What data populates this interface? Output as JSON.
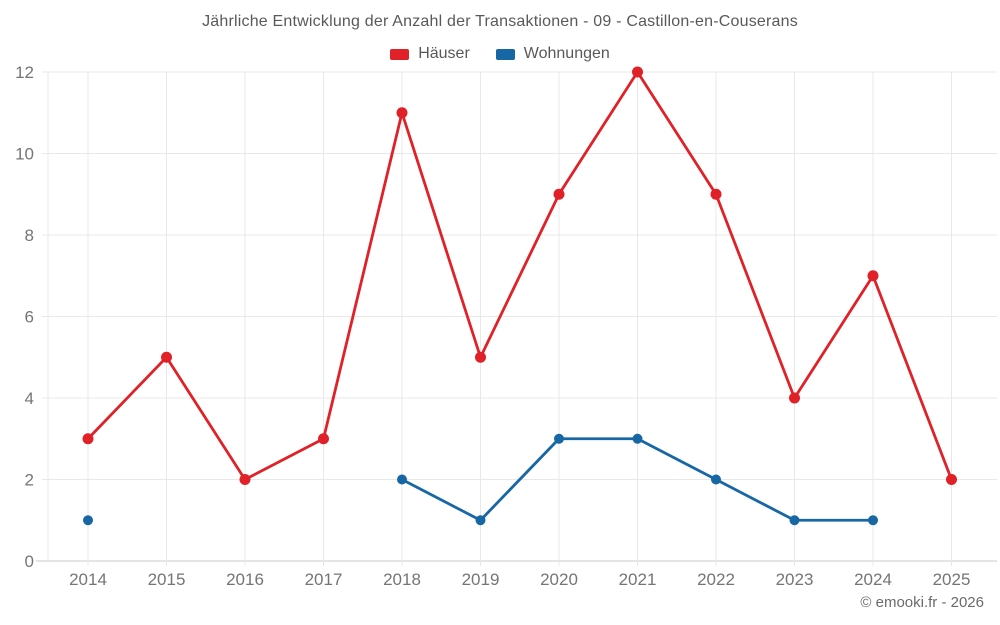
{
  "chart_data": {
    "type": "line",
    "title": "Jährliche Entwicklung der Anzahl der Transaktionen - 09 - Castillon-en-Couserans",
    "categories": [
      "2014",
      "2015",
      "2016",
      "2017",
      "2018",
      "2019",
      "2020",
      "2021",
      "2022",
      "2023",
      "2024",
      "2025"
    ],
    "series": [
      {
        "name": "Häuser",
        "color": "#e02128",
        "values": [
          3,
          5,
          2,
          3,
          11,
          5,
          9,
          12,
          9,
          4,
          7,
          2
        ]
      },
      {
        "name": "Wohnungen",
        "color": "#1767a5",
        "values": [
          1,
          null,
          null,
          null,
          2,
          1,
          3,
          3,
          2,
          1,
          1,
          null
        ]
      }
    ],
    "ylim": [
      0,
      12
    ],
    "yticks": [
      0,
      2,
      4,
      6,
      8,
      10,
      12
    ],
    "grid": true,
    "legend_position": "top",
    "xlabel": "",
    "ylabel": ""
  },
  "footer": {
    "text": "© emooki.fr - 2026"
  },
  "colors": {
    "background": "#ffffff",
    "grid": "#e8e8e8",
    "axis_line": "#c9c9c9",
    "axis_text": "#757575",
    "title_text": "#595959"
  }
}
